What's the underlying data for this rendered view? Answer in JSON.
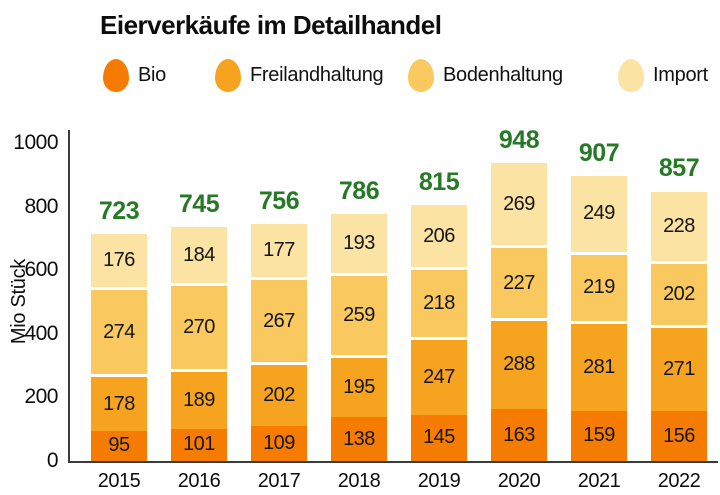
{
  "title": "Eierverkäufe im Detailhandel",
  "chart_data": {
    "type": "bar",
    "stacked": true,
    "title": "Eierverkäufe im Detailhandel",
    "ylabel": "Mio Stück",
    "ylim": [
      0,
      1000
    ],
    "yticks": [
      0,
      200,
      400,
      600,
      800,
      1000
    ],
    "grid": false,
    "legend_position": "top",
    "categories": [
      "2015",
      "2016",
      "2017",
      "2018",
      "2019",
      "2020",
      "2021",
      "2022"
    ],
    "series": [
      {
        "name": "Bio",
        "color": "#f57c00",
        "values": [
          95,
          101,
          109,
          138,
          145,
          163,
          159,
          156
        ]
      },
      {
        "name": "Freilandhaltung",
        "color": "#f6a41f",
        "values": [
          178,
          189,
          202,
          195,
          247,
          288,
          281,
          271
        ]
      },
      {
        "name": "Bodenhaltung",
        "color": "#f9c85f",
        "values": [
          274,
          270,
          267,
          259,
          218,
          227,
          219,
          202
        ]
      },
      {
        "name": "Import",
        "color": "#fbe3a4",
        "values": [
          176,
          184,
          177,
          193,
          206,
          269,
          249,
          228
        ]
      }
    ],
    "totals": [
      723,
      745,
      756,
      786,
      815,
      948,
      907,
      857
    ],
    "totals_color": "#267a27",
    "axis_color": "#3b3b3b",
    "value_label_color": "#151515"
  }
}
